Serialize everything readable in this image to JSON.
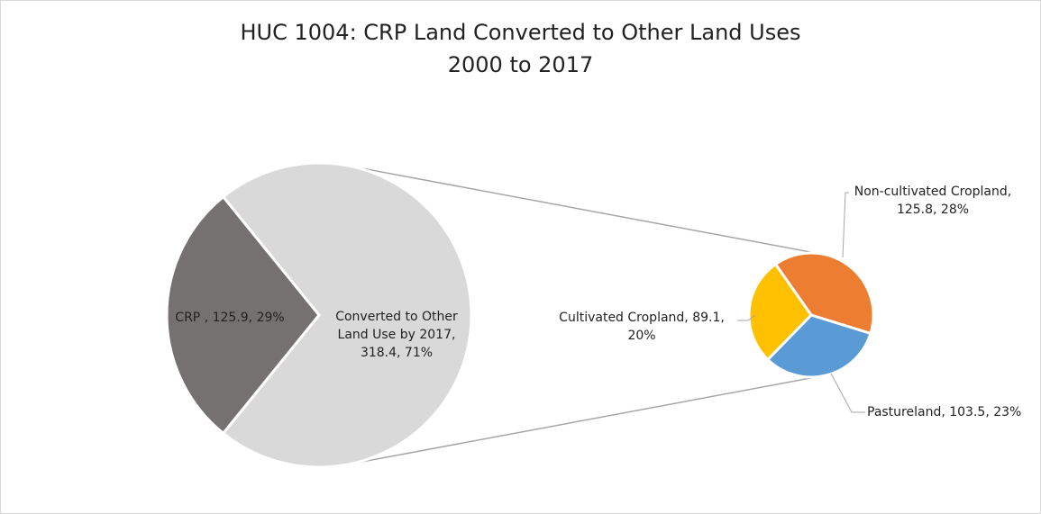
{
  "chart_data": {
    "type": "pie",
    "subtype": "pie-of-pie",
    "title_line1": "HUC 1004: CRP Land Converted to Other Land Uses",
    "title_line2": "2000 to 2017",
    "main_pie": {
      "slices": [
        {
          "label": "CRP ,",
          "value": 125.9,
          "percent": "29%",
          "color": "#767171",
          "label_lines": [
            "CRP , 125.9, 29%"
          ]
        },
        {
          "label": "Converted to Other Land Use by 2017,",
          "value": 318.4,
          "percent": "71%",
          "color": "#d9d9d9",
          "label_lines": [
            "Converted to Other",
            "Land Use by 2017,",
            "318.4, 71%"
          ]
        }
      ]
    },
    "secondary_pie": {
      "slices": [
        {
          "label": "Non-cultivated Cropland,",
          "value": 125.8,
          "percent": "28%",
          "color": "#ed7d31",
          "label_lines": [
            "Non-cultivated Cropland,",
            "125.8, 28%"
          ]
        },
        {
          "label": "Pastureland,",
          "value": 103.5,
          "percent": "23%",
          "color": "#5b9bd5",
          "label_lines": [
            "Pastureland, 103.5, 23%"
          ]
        },
        {
          "label": "Cultivated Cropland,",
          "value": 89.1,
          "percent": "20%",
          "color": "#ffc000",
          "label_lines": [
            "Cultivated Cropland, 89.1,",
            "20%"
          ]
        }
      ]
    },
    "legend": "none"
  }
}
